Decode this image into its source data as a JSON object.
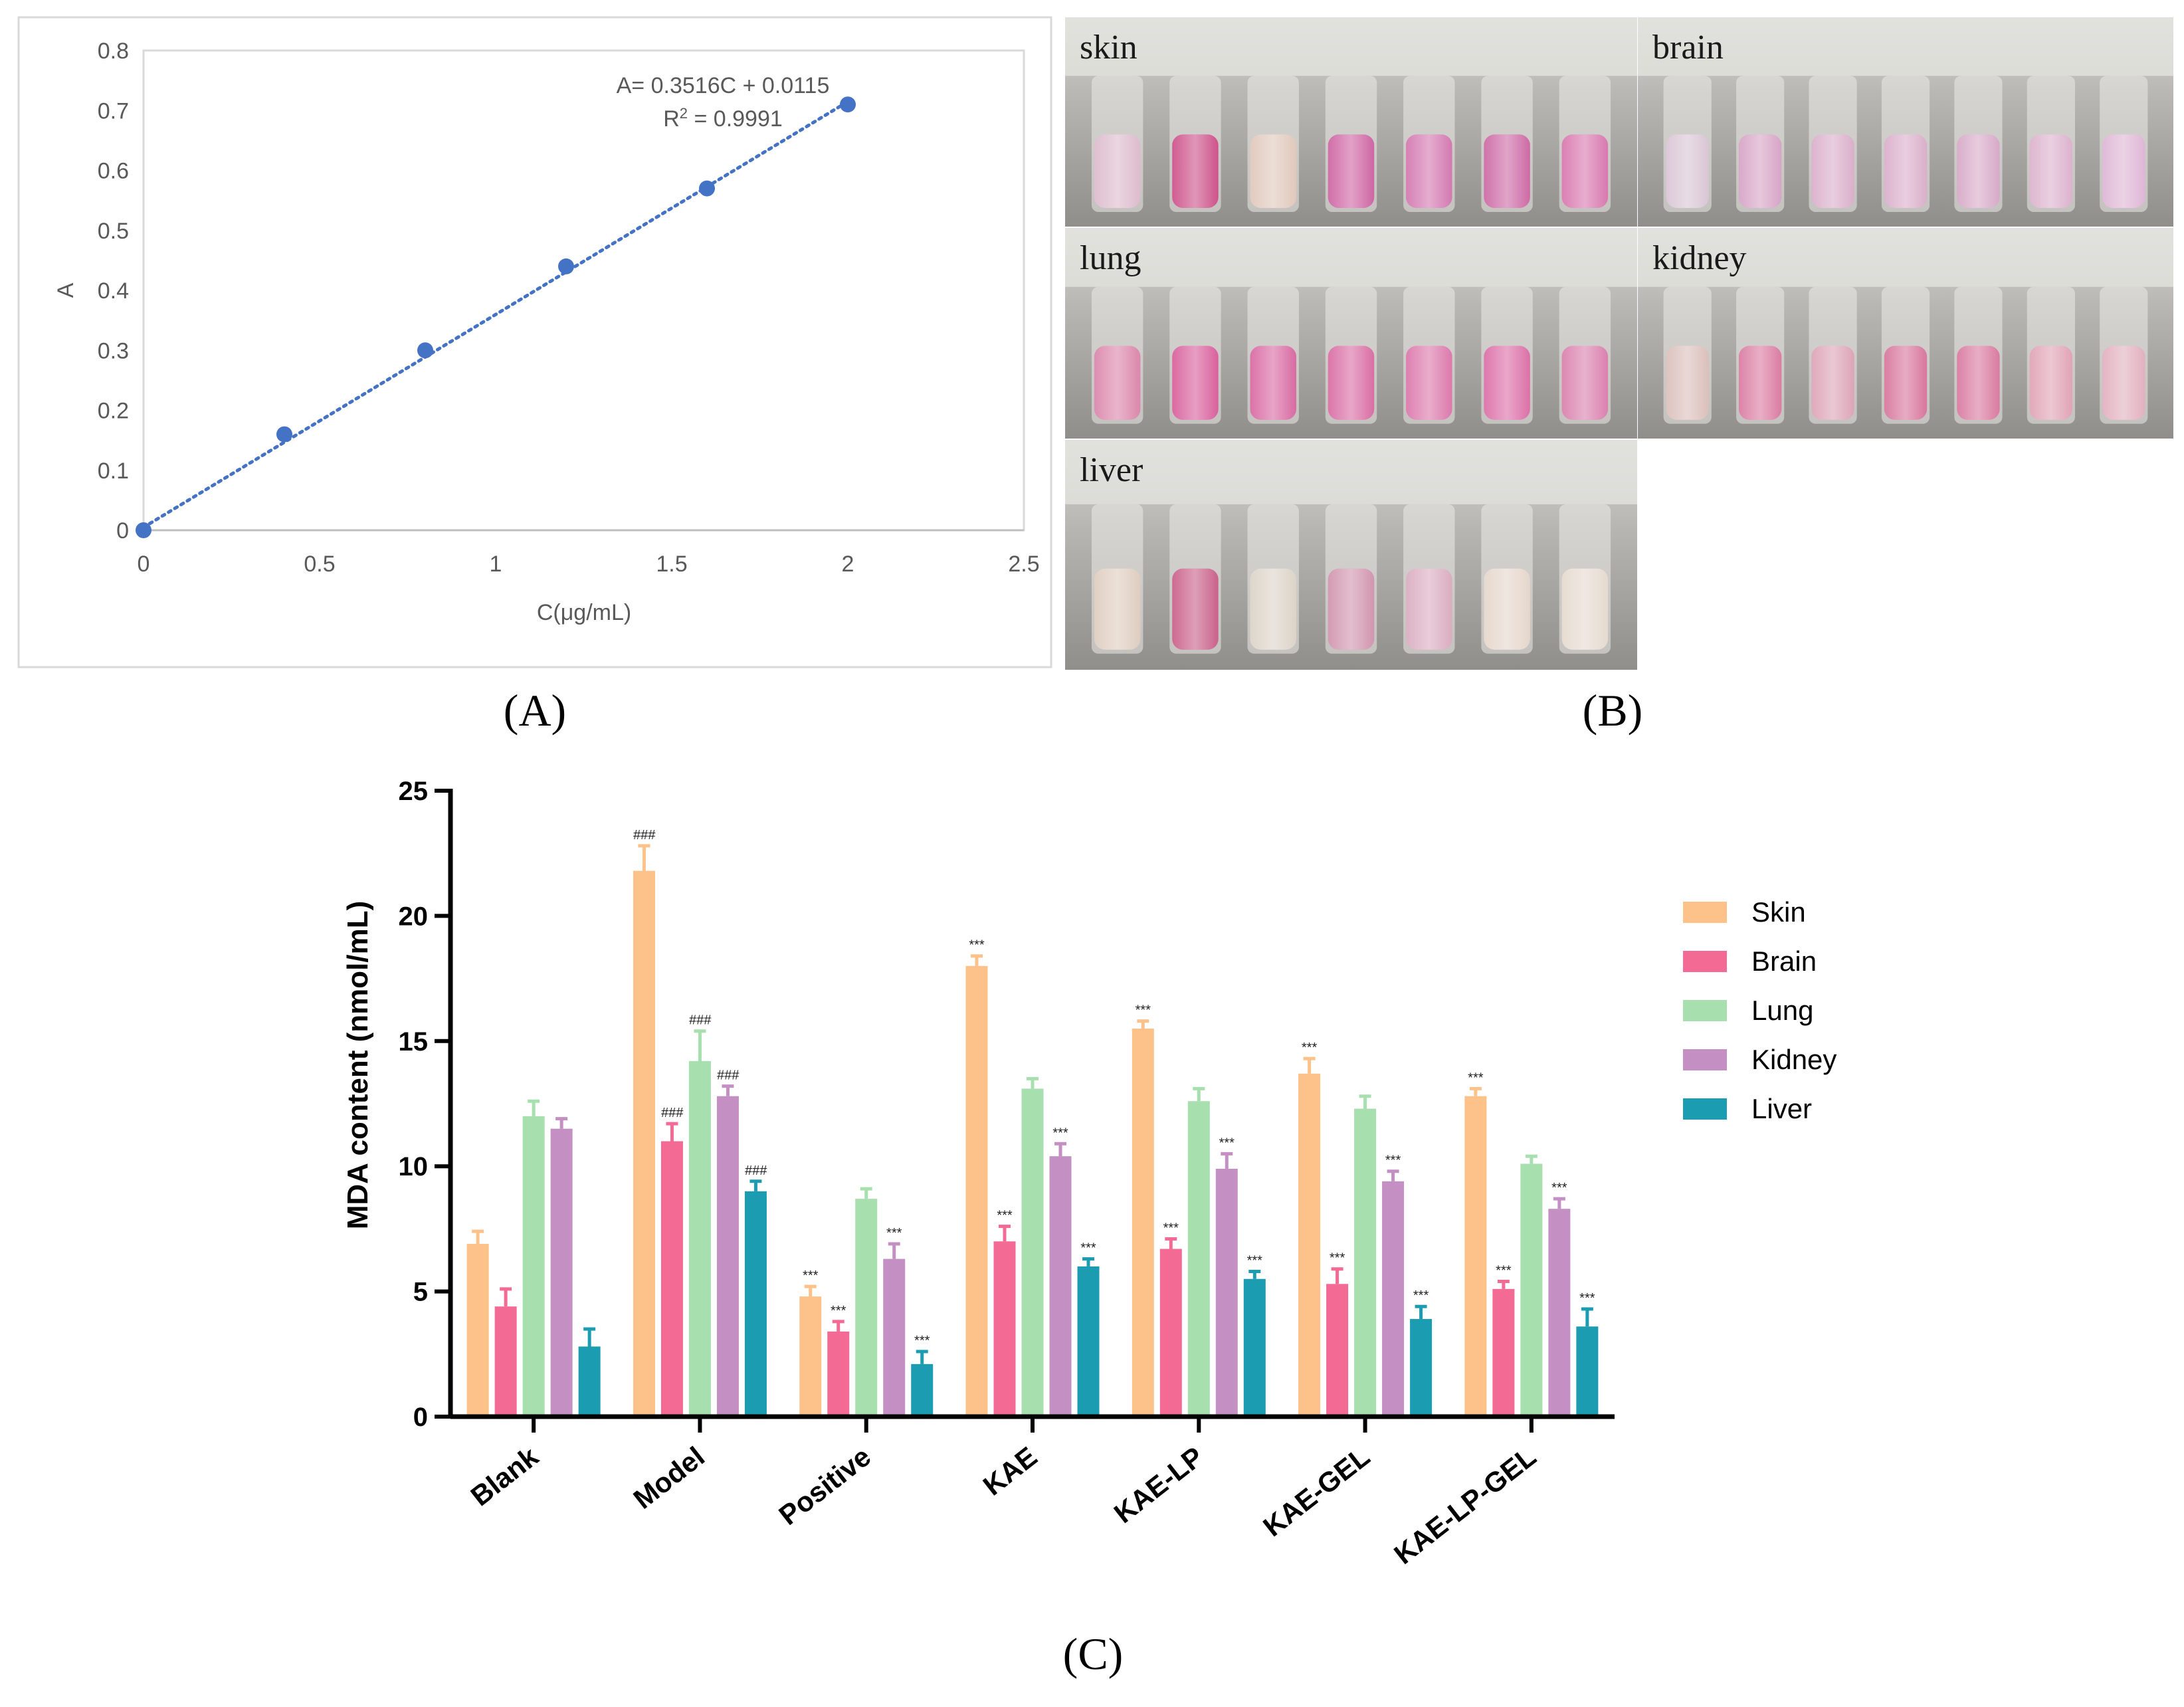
{
  "panel_labels": {
    "a": "(A)",
    "b": "(B)",
    "c": "(C)"
  },
  "colors": {
    "skin": "#FDC289",
    "brain": "#F36A94",
    "lung": "#A8DFAE",
    "kidney": "#C48FC2",
    "liver": "#1C9CB1",
    "standard_point": "#4472C4"
  },
  "tube_captions": {
    "skin": "skin",
    "brain": "brain",
    "lung": "lung",
    "kidney": "kidney",
    "liver": "liver"
  },
  "tube_colors": {
    "skin": [
      "#d9b4c8",
      "#c8407e",
      "#ddc2b4",
      "#c9559a",
      "#cf6aa8",
      "#c85a9c",
      "#d46aa6"
    ],
    "brain": [
      "#d5bfd0",
      "#d39ac0",
      "#d6a6c5",
      "#d6a6c5",
      "#d3a0c2",
      "#d8aac8",
      "#dbaed0"
    ],
    "lung": [
      "#d77aa2",
      "#d44f92",
      "#d45a98",
      "#d55e9a",
      "#d86aa2",
      "#d8609e",
      "#d673a4"
    ],
    "kidney": [
      "#d7b9b4",
      "#d66e98",
      "#d99ab0",
      "#d36892",
      "#d56c96",
      "#dd9aae",
      "#dea8b8"
    ],
    "liver": [
      "#dbc8b8",
      "#c4507e",
      "#d8cfc2",
      "#cc8aa6",
      "#d6a4ba",
      "#e2d2c6",
      "#e3d6ca"
    ]
  },
  "chart_data": [
    {
      "type": "scatter",
      "title": "",
      "xlabel": "C(μg/mL)",
      "ylabel": "A",
      "xlim": [
        0,
        2.5
      ],
      "ylim": [
        0,
        0.8
      ],
      "x_ticks": [
        "0",
        "0.5",
        "1",
        "1.5",
        "2",
        "2.5"
      ],
      "y_ticks": [
        "0",
        "0.1",
        "0.2",
        "0.3",
        "0.4",
        "0.5",
        "0.6",
        "0.7",
        "0.8"
      ],
      "x": [
        0,
        0.4,
        0.8,
        1.2,
        1.6,
        2.0
      ],
      "y": [
        0,
        0.16,
        0.3,
        0.44,
        0.57,
        0.71
      ],
      "trendline": {
        "slope": 0.3516,
        "intercept": 0.0115,
        "style": "dotted"
      },
      "equation": "A= 0.3516C + 0.0115",
      "r2_prefix": "R",
      "r2_sup": "2",
      "r2_value": " = 0.9991"
    },
    {
      "type": "bar",
      "title": "",
      "xlabel": "",
      "ylabel": "MDA content (nmol/mL)",
      "ylim": [
        0,
        25
      ],
      "y_ticks": [
        "0",
        "5",
        "10",
        "15",
        "20",
        "25"
      ],
      "categories": [
        "Blank",
        "Model",
        "Positive",
        "KAE",
        "KAE-LP",
        "KAE-GEL",
        "KAE-LP-GEL"
      ],
      "legend_position": "right",
      "series": [
        {
          "name": "Skin",
          "values": [
            6.9,
            21.8,
            4.8,
            18.0,
            15.5,
            13.7,
            12.8
          ],
          "errors": [
            0.5,
            1.0,
            0.4,
            0.4,
            0.3,
            0.6,
            0.3
          ],
          "labels": [
            "",
            "###",
            "***",
            "***",
            "***",
            "***",
            "***"
          ]
        },
        {
          "name": "Brain",
          "values": [
            4.4,
            11.0,
            3.4,
            7.0,
            6.7,
            5.3,
            5.1
          ],
          "errors": [
            0.7,
            0.7,
            0.4,
            0.6,
            0.4,
            0.6,
            0.3
          ],
          "labels": [
            "",
            "###",
            "***",
            "***",
            "***",
            "***",
            "***"
          ]
        },
        {
          "name": "Lung",
          "values": [
            12.0,
            14.2,
            8.7,
            13.1,
            12.6,
            12.3,
            10.1
          ],
          "errors": [
            0.6,
            1.2,
            0.4,
            0.4,
            0.5,
            0.5,
            0.3
          ],
          "labels": [
            "",
            "###",
            "",
            "",
            "",
            "",
            ""
          ]
        },
        {
          "name": "Kidney",
          "values": [
            11.5,
            12.8,
            6.3,
            10.4,
            9.9,
            9.4,
            8.3
          ],
          "errors": [
            0.4,
            0.4,
            0.6,
            0.5,
            0.6,
            0.4,
            0.4
          ],
          "labels": [
            "",
            "###",
            "***",
            "***",
            "***",
            "***",
            "***"
          ]
        },
        {
          "name": "Liver",
          "values": [
            2.8,
            9.0,
            2.1,
            6.0,
            5.5,
            3.9,
            3.6
          ],
          "errors": [
            0.7,
            0.4,
            0.5,
            0.3,
            0.3,
            0.5,
            0.7
          ],
          "labels": [
            "",
            "###",
            "***",
            "***",
            "***",
            "***",
            "***"
          ]
        }
      ]
    }
  ]
}
